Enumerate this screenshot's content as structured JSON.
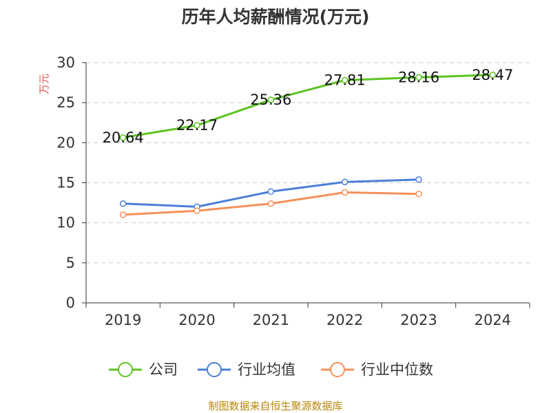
{
  "chart_data": {
    "type": "line",
    "title": "历年人均薪酬情况(万元)",
    "ylabel": "万元",
    "xlabel": "",
    "categories": [
      "2019",
      "2020",
      "2021",
      "2022",
      "2023",
      "2024"
    ],
    "ylim": [
      0,
      30
    ],
    "yticks": [
      0,
      5,
      10,
      15,
      20,
      25,
      30
    ],
    "grid": true,
    "legend_position": "bottom",
    "series": [
      {
        "name": "公司",
        "color": "#5cc320",
        "values": [
          20.64,
          22.17,
          25.36,
          27.81,
          28.16,
          28.47
        ],
        "labels": [
          "20.64",
          "22.17",
          "25.36",
          "27.81",
          "28.16",
          "28.47"
        ]
      },
      {
        "name": "行业均值",
        "color": "#4a7fd6",
        "values": [
          12.4,
          12.0,
          13.9,
          15.1,
          15.4,
          null
        ]
      },
      {
        "name": "行业中位数",
        "color": "#f5905a",
        "values": [
          11.0,
          11.5,
          12.4,
          13.8,
          13.6,
          null
        ]
      }
    ],
    "source": "制图数据来自恒生聚源数据库"
  }
}
